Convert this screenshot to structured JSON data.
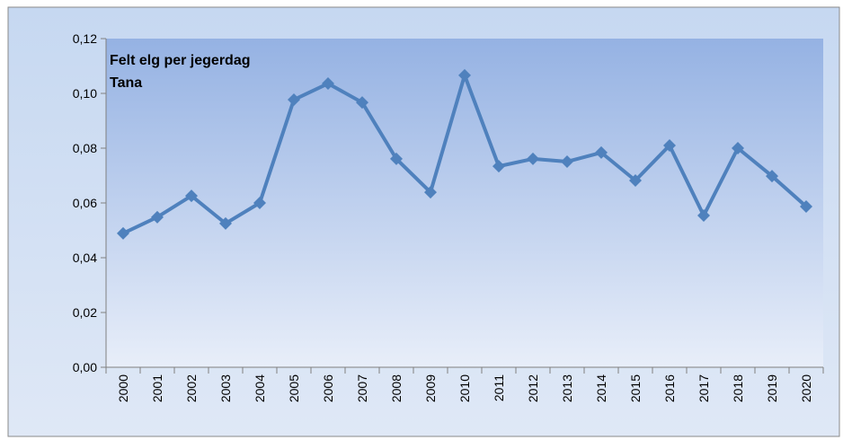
{
  "chart_data": {
    "type": "line",
    "title": "Felt elg per jegerdag",
    "subtitle": "Tana",
    "categories": [
      "2000",
      "2001",
      "2002",
      "2003",
      "2004",
      "2005",
      "2006",
      "2007",
      "2008",
      "2009",
      "2010",
      "2011",
      "2012",
      "2013",
      "2014",
      "2015",
      "2016",
      "2017",
      "2018",
      "2019",
      "2020"
    ],
    "series": [
      {
        "name": "Felt elg per jegerdag",
        "color": "#4f81bd",
        "values": [
          0.0489,
          0.0548,
          0.0626,
          0.0525,
          0.06,
          0.0977,
          0.1036,
          0.0967,
          0.0761,
          0.0639,
          0.1066,
          0.0734,
          0.0761,
          0.0751,
          0.0784,
          0.0682,
          0.081,
          0.0554,
          0.08,
          0.0698,
          0.0587
        ]
      }
    ],
    "ylim": [
      0,
      0.12
    ],
    "yticks": [
      {
        "value": 0,
        "label": "0,00"
      },
      {
        "value": 0.02,
        "label": "0,02"
      },
      {
        "value": 0.04,
        "label": "0,04"
      },
      {
        "value": 0.06,
        "label": "0,06"
      },
      {
        "value": 0.08,
        "label": "0,08"
      },
      {
        "value": 0.1,
        "label": "0,10"
      },
      {
        "value": 0.12,
        "label": "0,12"
      }
    ]
  }
}
